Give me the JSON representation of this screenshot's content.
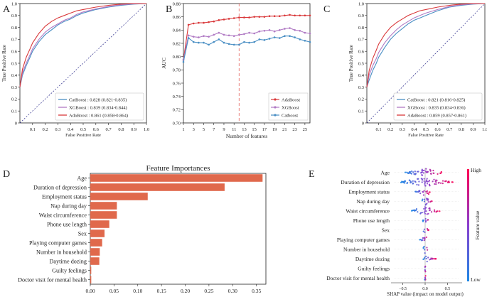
{
  "panel_letters": [
    "A",
    "B",
    "C",
    "D",
    "E"
  ],
  "chart_data": [
    {
      "panel": "A",
      "type": "line",
      "xlabel": "False Positive Rate",
      "ylabel": "True Positive Rate",
      "xlim": [
        0,
        1
      ],
      "ylim": [
        0,
        1
      ],
      "xticks": [
        0.1,
        0.2,
        0.3,
        0.4,
        0.5,
        0.6,
        0.7,
        0.8,
        0.9,
        1.0
      ],
      "yticks": [
        0,
        0.1,
        0.2,
        0.3,
        0.4,
        0.5,
        0.6,
        0.7,
        0.8,
        0.9,
        1.0
      ],
      "x_tick_labels": [
        "0.1",
        "0.2",
        "0.3",
        "0.4",
        "0.5",
        "0.6",
        "0.7",
        "0.8",
        "0.9",
        "1.0"
      ],
      "y_tick_labels": [
        "0",
        "0.1",
        "0.2",
        "0.3",
        "0.4",
        "0.5",
        "0.6",
        "0.7",
        "0.8",
        "0.9",
        "1.0"
      ],
      "legend_position": "bottom-right",
      "series": [
        {
          "name": "CatBoost",
          "label": "CatBoost : 0.828 (0.821-0.835)",
          "color": "#4a8fc4",
          "x": [
            0,
            0.02,
            0.05,
            0.08,
            0.1,
            0.15,
            0.2,
            0.25,
            0.3,
            0.35,
            0.4,
            0.45,
            0.5,
            0.6,
            0.7,
            0.8,
            0.9,
            1.0
          ],
          "y": [
            0.3,
            0.4,
            0.48,
            0.55,
            0.6,
            0.68,
            0.74,
            0.78,
            0.82,
            0.85,
            0.87,
            0.9,
            0.92,
            0.95,
            0.97,
            0.985,
            0.995,
            1.0
          ]
        },
        {
          "name": "XGBoost",
          "label": "XGBoost : 0.839 (0.834-0.844)",
          "color": "#b07ac4",
          "x": [
            0,
            0.02,
            0.05,
            0.08,
            0.1,
            0.15,
            0.2,
            0.25,
            0.3,
            0.35,
            0.4,
            0.45,
            0.5,
            0.6,
            0.7,
            0.8,
            0.9,
            1.0
          ],
          "y": [
            0.3,
            0.42,
            0.5,
            0.57,
            0.62,
            0.7,
            0.76,
            0.8,
            0.83,
            0.86,
            0.88,
            0.91,
            0.93,
            0.955,
            0.975,
            0.99,
            0.997,
            1.0
          ]
        },
        {
          "name": "AdaBoost",
          "label": "AdaBoost : 0.861 (0.858-0.864)",
          "color": "#d9383a",
          "x": [
            0,
            0.02,
            0.05,
            0.08,
            0.1,
            0.15,
            0.2,
            0.25,
            0.3,
            0.35,
            0.4,
            0.45,
            0.5,
            0.6,
            0.7,
            0.8,
            0.9,
            1.0
          ],
          "y": [
            0.3,
            0.45,
            0.55,
            0.62,
            0.67,
            0.75,
            0.81,
            0.85,
            0.88,
            0.9,
            0.92,
            0.94,
            0.95,
            0.97,
            0.985,
            0.995,
            1.0,
            1.0
          ]
        }
      ]
    },
    {
      "panel": "B",
      "type": "line",
      "xlabel": "Number of features",
      "ylabel": "AUC",
      "xlim": [
        1,
        26
      ],
      "ylim": [
        0.7,
        0.88
      ],
      "xticks": [
        1,
        3,
        5,
        7,
        9,
        11,
        13,
        15,
        17,
        19,
        21,
        23,
        25
      ],
      "yticks": [
        0.7,
        0.72,
        0.74,
        0.76,
        0.78,
        0.8,
        0.82,
        0.84,
        0.86,
        0.88
      ],
      "x_tick_labels": [
        "1",
        "3",
        "5",
        "7",
        "9",
        "11",
        "13",
        "15",
        "17",
        "19",
        "21",
        "23",
        "25"
      ],
      "y_tick_labels": [
        "0.70",
        "0.72",
        "0.74",
        "0.76",
        "0.78",
        "0.80",
        "0.82",
        "0.84",
        "0.86",
        "0.88"
      ],
      "vline_x": 12,
      "legend_position": "bottom-right",
      "x": [
        1,
        2,
        3,
        4,
        5,
        6,
        7,
        8,
        9,
        10,
        11,
        12,
        13,
        14,
        15,
        16,
        17,
        18,
        19,
        20,
        21,
        22,
        23,
        24,
        25,
        26
      ],
      "series": [
        {
          "name": "AdaBoost",
          "label": "AdaBoost",
          "color": "#d9383a",
          "values": [
            0.795,
            0.848,
            0.85,
            0.851,
            0.851,
            0.852,
            0.853,
            0.855,
            0.856,
            0.857,
            0.858,
            0.859,
            0.859,
            0.859,
            0.86,
            0.86,
            0.86,
            0.861,
            0.861,
            0.861,
            0.862,
            0.863,
            0.862,
            0.862,
            0.862,
            0.862
          ]
        },
        {
          "name": "XGBoost",
          "label": "XGBoost",
          "color": "#b07ac4",
          "values": [
            0.795,
            0.832,
            0.83,
            0.829,
            0.831,
            0.83,
            0.833,
            0.836,
            0.833,
            0.832,
            0.831,
            0.833,
            0.834,
            0.836,
            0.835,
            0.838,
            0.839,
            0.84,
            0.838,
            0.84,
            0.842,
            0.843,
            0.84,
            0.839,
            0.836,
            0.835
          ]
        },
        {
          "name": "Catboost",
          "label": "Catboost",
          "color": "#4a8fc4",
          "values": [
            0.792,
            0.828,
            0.822,
            0.821,
            0.821,
            0.818,
            0.822,
            0.826,
            0.821,
            0.819,
            0.818,
            0.818,
            0.822,
            0.821,
            0.822,
            0.826,
            0.825,
            0.827,
            0.829,
            0.828,
            0.831,
            0.831,
            0.829,
            0.826,
            0.824,
            0.822
          ]
        }
      ]
    },
    {
      "panel": "C",
      "type": "line",
      "xlabel": "False Positive Rate",
      "ylabel": "True Positive Rate",
      "xlim": [
        0,
        1
      ],
      "ylim": [
        0,
        1
      ],
      "xticks": [
        0.1,
        0.2,
        0.3,
        0.4,
        0.5,
        0.6,
        0.7,
        0.8,
        0.9,
        1.0
      ],
      "yticks": [
        0,
        0.1,
        0.2,
        0.3,
        0.4,
        0.5,
        0.6,
        0.7,
        0.8,
        0.9,
        1.0
      ],
      "x_tick_labels": [
        "0.1",
        "0.2",
        "0.3",
        "0.4",
        "0.5",
        "0.6",
        "0.7",
        "0.8",
        "0.9",
        "1.0"
      ],
      "y_tick_labels": [
        "0",
        "0.1",
        "0.2",
        "0.3",
        "0.4",
        "0.5",
        "0.6",
        "0.7",
        "0.8",
        "0.9",
        "1.0"
      ],
      "legend_position": "bottom-right",
      "series": [
        {
          "name": "CatBoost",
          "label": "CatBoost : 0.821 (0.816-0.825)",
          "color": "#4a8fc4",
          "x": [
            0,
            0.02,
            0.05,
            0.08,
            0.1,
            0.15,
            0.2,
            0.25,
            0.3,
            0.35,
            0.4,
            0.45,
            0.5,
            0.6,
            0.7,
            0.8,
            0.9,
            1.0
          ],
          "y": [
            0.3,
            0.36,
            0.44,
            0.5,
            0.55,
            0.63,
            0.7,
            0.75,
            0.79,
            0.83,
            0.86,
            0.88,
            0.9,
            0.94,
            0.97,
            0.985,
            0.995,
            1.0
          ]
        },
        {
          "name": "XGBoost",
          "label": "XGBoost : 0.835 (0.834-0.836)",
          "color": "#b07ac4",
          "x": [
            0,
            0.02,
            0.05,
            0.08,
            0.1,
            0.15,
            0.2,
            0.25,
            0.3,
            0.35,
            0.4,
            0.45,
            0.5,
            0.6,
            0.7,
            0.8,
            0.9,
            1.0
          ],
          "y": [
            0.3,
            0.4,
            0.48,
            0.54,
            0.59,
            0.67,
            0.73,
            0.78,
            0.82,
            0.85,
            0.88,
            0.9,
            0.92,
            0.95,
            0.975,
            0.99,
            0.997,
            1.0
          ]
        },
        {
          "name": "AdaBoost",
          "label": "AdaBoost : 0.859 (0.857-0.861)",
          "color": "#d9383a",
          "x": [
            0,
            0.02,
            0.05,
            0.08,
            0.1,
            0.15,
            0.2,
            0.25,
            0.3,
            0.35,
            0.4,
            0.45,
            0.5,
            0.6,
            0.7,
            0.8,
            0.9,
            1.0
          ],
          "y": [
            0.3,
            0.44,
            0.54,
            0.61,
            0.66,
            0.74,
            0.8,
            0.84,
            0.87,
            0.9,
            0.92,
            0.94,
            0.95,
            0.97,
            0.985,
            0.995,
            1.0,
            1.0
          ]
        }
      ]
    },
    {
      "panel": "D",
      "type": "bar",
      "orientation": "horizontal",
      "title": "Feature Importances",
      "color": "#e0694c",
      "xlim": [
        0,
        0.37
      ],
      "xticks": [
        0,
        0.05,
        0.1,
        0.15,
        0.2,
        0.25,
        0.3,
        0.35
      ],
      "x_tick_labels": [
        "0.00",
        "0.05",
        "0.10",
        "0.15",
        "0.20",
        "0.25",
        "0.30",
        "0.35"
      ],
      "categories": [
        "Age",
        "Duration of depression",
        "Employment status",
        "Nap during day",
        "Waist circumference",
        "Phone use length",
        "Sex",
        "Playing computer games",
        "Number in household",
        "Daytime dozing",
        "Guilty feelings",
        "Doctor visit for mental health"
      ],
      "values": [
        0.363,
        0.283,
        0.121,
        0.056,
        0.056,
        0.04,
        0.03,
        0.025,
        0.02,
        0.019,
        0.002,
        0.002
      ]
    },
    {
      "panel": "E",
      "type": "scatter",
      "subtype": "shap-beeswarm",
      "xlabel": "SHAP value (impact on model output)",
      "colorbar_label": "Feature value",
      "colorbar_high": "High",
      "colorbar_low": "Low",
      "color_low": "#1e88e5",
      "color_high": "#ff0052",
      "xlim": [
        -0.75,
        0.75
      ],
      "xticks": [
        -0.5,
        0,
        0.5
      ],
      "x_tick_labels": [
        "−0.5",
        "0.0",
        "0.5"
      ],
      "features": [
        {
          "name": "Age",
          "spread": [
            -0.45,
            0.4
          ]
        },
        {
          "name": "Duration of depression",
          "spread": [
            -0.55,
            0.65
          ]
        },
        {
          "name": "Employment status",
          "spread": [
            -0.25,
            0.12
          ]
        },
        {
          "name": "Nap during day",
          "spread": [
            -0.08,
            0.18
          ]
        },
        {
          "name": "Waist circumference",
          "spread": [
            -0.3,
            0.35
          ]
        },
        {
          "name": "Phone use length",
          "spread": [
            -0.05,
            0.1
          ]
        },
        {
          "name": "Sex",
          "spread": [
            -0.06,
            0.08
          ]
        },
        {
          "name": "Playing computer games",
          "spread": [
            -0.12,
            0.06
          ]
        },
        {
          "name": "Number in household",
          "spread": [
            -0.04,
            0.08
          ]
        },
        {
          "name": "Daytime dozing",
          "spread": [
            -0.05,
            0.25
          ]
        },
        {
          "name": "Guilty feelings",
          "spread": [
            -0.01,
            0.01
          ]
        },
        {
          "name": "Doctor visit for mental health",
          "spread": [
            -0.01,
            0.01
          ]
        }
      ]
    }
  ]
}
